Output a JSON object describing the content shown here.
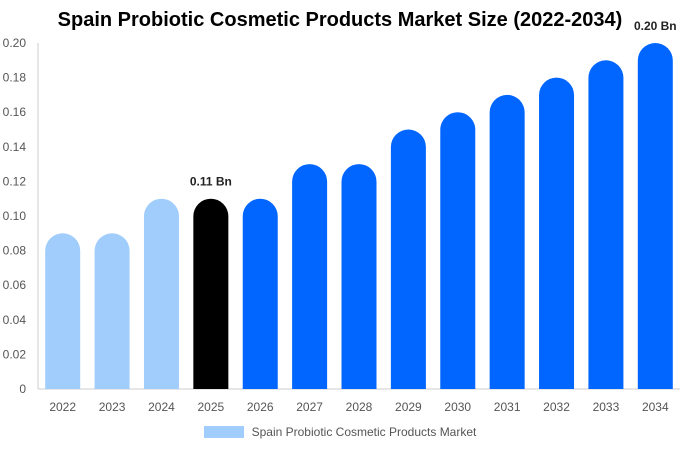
{
  "chart_data": {
    "type": "bar",
    "title": "Spain Probiotic Cosmetic Products Market Size (2022-2034)",
    "categories": [
      "2022",
      "2023",
      "2024",
      "2025",
      "2026",
      "2027",
      "2028",
      "2029",
      "2030",
      "2031",
      "2032",
      "2033",
      "2034"
    ],
    "series": [
      {
        "name": "Spain Probiotic Cosmetic Products Market",
        "values": [
          0.09,
          0.09,
          0.11,
          0.11,
          0.11,
          0.13,
          0.13,
          0.15,
          0.16,
          0.17,
          0.18,
          0.19,
          0.2
        ]
      }
    ],
    "ylim": [
      0,
      0.2
    ],
    "yticks": [
      "0",
      "0.02",
      "0.04",
      "0.06",
      "0.08",
      "0.10",
      "0.12",
      "0.14",
      "0.16",
      "0.18",
      "0.20"
    ],
    "data_labels": [
      {
        "category": "2025",
        "text": "0.11 Bn"
      },
      {
        "category": "2034",
        "text": "0.20 Bn"
      }
    ],
    "bar_colors": [
      "#a0cdfc",
      "#a0cdfc",
      "#a0cdfc",
      "#000000",
      "#0066ff",
      "#0066ff",
      "#0066ff",
      "#0066ff",
      "#0066ff",
      "#0066ff",
      "#0066ff",
      "#0066ff",
      "#0066ff"
    ],
    "legend_color": "#a0cdfc",
    "grid": false,
    "legend_position": "bottom"
  }
}
